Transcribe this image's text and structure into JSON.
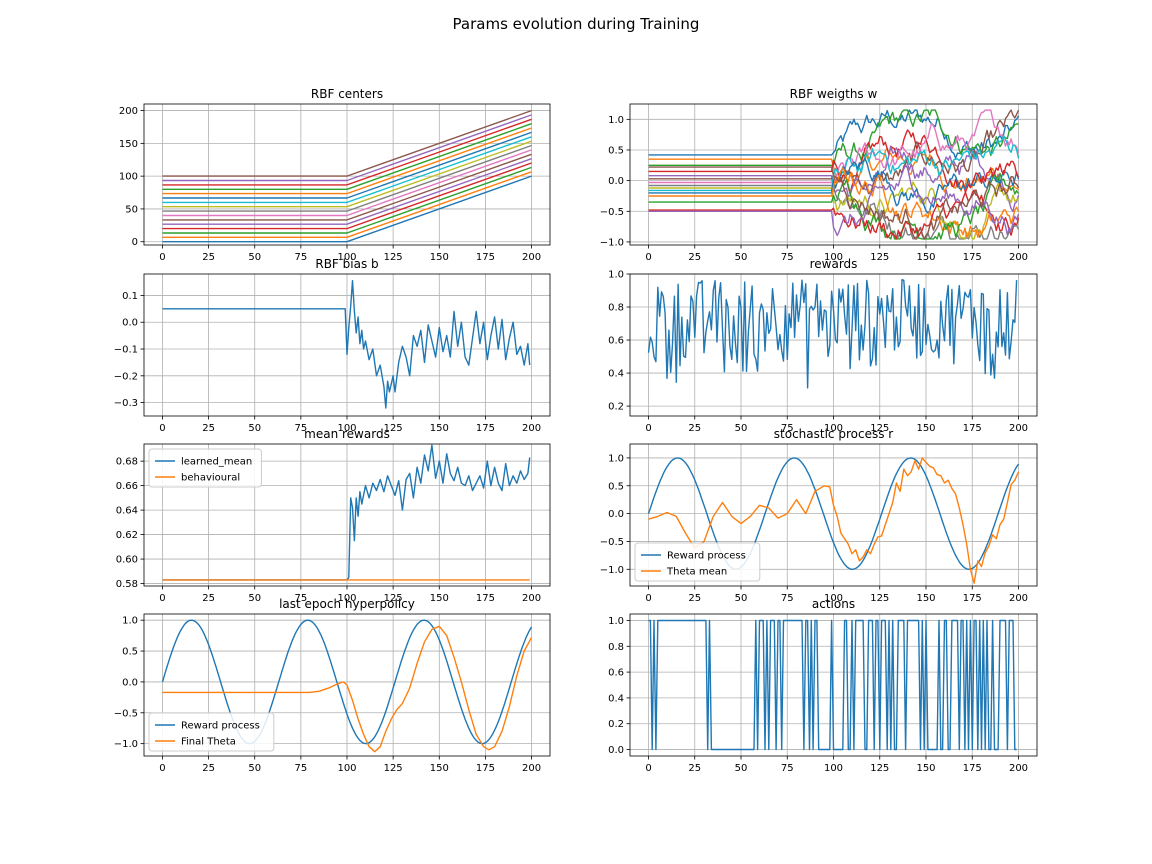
{
  "figure": {
    "suptitle": "Params evolution during Training"
  },
  "colors": {
    "tab_blue": "#1f77b4",
    "tab_orange": "#ff7f0e",
    "palette": [
      "#1f77b4",
      "#ff7f0e",
      "#2ca02c",
      "#d62728",
      "#9467bd",
      "#8c564b",
      "#e377c2",
      "#7f7f7f",
      "#bcbd22",
      "#17becf"
    ]
  },
  "chart_data": [
    {
      "id": "rbf_centers",
      "type": "line",
      "title": "RBF centers",
      "xlim": [
        -10,
        210
      ],
      "ylim": [
        -5,
        210
      ],
      "xticks": [
        0,
        25,
        50,
        75,
        100,
        125,
        150,
        175,
        200
      ],
      "yticks": [
        0,
        50,
        100,
        150,
        200
      ],
      "grid": true,
      "generator": {
        "kind": "piecewise_lines",
        "n_lines": 16,
        "x_break": 100,
        "x_end": 200,
        "start_range": [
          0,
          100
        ],
        "end_range": [
          100,
          200
        ]
      }
    },
    {
      "id": "rbf_weights",
      "type": "line",
      "title": "RBF weigths w",
      "xlim": [
        -10,
        210
      ],
      "ylim": [
        -1.05,
        1.25
      ],
      "xticks": [
        0,
        25,
        50,
        75,
        100,
        125,
        150,
        175,
        200
      ],
      "yticks": [
        -1.0,
        -0.5,
        0.0,
        0.5,
        1.0
      ],
      "grid": true,
      "generator": {
        "kind": "constant_then_noise",
        "x_break": 99,
        "initial_values": [
          0.42,
          0.35,
          0.25,
          0.15,
          0.08,
          0.03,
          -0.03,
          -0.08,
          -0.12,
          -0.16,
          -0.2,
          -0.25,
          -0.35,
          -0.48,
          -0.5,
          0.22
        ],
        "value_range": [
          -0.95,
          1.15
        ]
      }
    },
    {
      "id": "rbf_bias",
      "type": "line",
      "title": "RBF bias b",
      "xlim": [
        -10,
        210
      ],
      "ylim": [
        -0.35,
        0.18
      ],
      "xticks": [
        0,
        25,
        50,
        75,
        100,
        125,
        150,
        175,
        200
      ],
      "yticks": [
        -0.3,
        -0.2,
        -0.1,
        0.0,
        0.1
      ],
      "grid": true,
      "series": [
        {
          "x": [
            0,
            98,
            99,
            100,
            101,
            102,
            103,
            104,
            105,
            106,
            107,
            108,
            109,
            110,
            112,
            114,
            116,
            118,
            120,
            121,
            122,
            123,
            124,
            125,
            126,
            128,
            130,
            132,
            134,
            136,
            138,
            140,
            142,
            144,
            146,
            148,
            150,
            152,
            154,
            156,
            158,
            160,
            162,
            164,
            166,
            168,
            170,
            172,
            174,
            176,
            178,
            180,
            182,
            184,
            186,
            188,
            190,
            192,
            194,
            196,
            198,
            199
          ],
          "values": [
            0.05,
            0.05,
            0.05,
            -0.12,
            -0.02,
            0.06,
            0.155,
            0.04,
            -0.04,
            0.02,
            -0.08,
            -0.03,
            -0.1,
            -0.07,
            -0.14,
            -0.1,
            -0.2,
            -0.16,
            -0.24,
            -0.32,
            -0.22,
            -0.26,
            -0.23,
            -0.2,
            -0.26,
            -0.15,
            -0.09,
            -0.13,
            -0.2,
            -0.05,
            -0.09,
            -0.03,
            -0.15,
            -0.01,
            -0.07,
            -0.13,
            -0.02,
            -0.11,
            -0.05,
            -0.13,
            0.04,
            -0.09,
            0.0,
            -0.13,
            -0.16,
            -0.06,
            0.04,
            -0.08,
            0.0,
            -0.14,
            -0.05,
            0.02,
            -0.1,
            0.01,
            -0.14,
            -0.06,
            0.0,
            -0.12,
            -0.09,
            -0.16,
            -0.08,
            -0.16
          ]
        }
      ]
    },
    {
      "id": "rewards",
      "type": "line",
      "title": "rewards",
      "xlim": [
        -10,
        210
      ],
      "ylim": [
        0.14,
        1.0
      ],
      "xticks": [
        0,
        25,
        50,
        75,
        100,
        125,
        150,
        175,
        200
      ],
      "yticks": [
        0.2,
        0.4,
        0.6,
        0.8,
        1.0
      ],
      "grid": true,
      "generator": {
        "kind": "noise",
        "n": 200,
        "range": [
          0.17,
          0.97
        ]
      }
    },
    {
      "id": "mean_rewards",
      "type": "line",
      "title": "mean rewards",
      "xlim": [
        -10,
        210
      ],
      "ylim": [
        0.578,
        0.694
      ],
      "xticks": [
        0,
        25,
        50,
        75,
        100,
        125,
        150,
        175,
        200
      ],
      "yticks": [
        0.58,
        0.6,
        0.62,
        0.64,
        0.66,
        0.68
      ],
      "grid": true,
      "legend": "upper-left",
      "series": [
        {
          "name": "learned_mean",
          "x": [
            0,
            100,
            101,
            102,
            103,
            104,
            105,
            106,
            107,
            108,
            110,
            112,
            114,
            116,
            118,
            120,
            122,
            124,
            126,
            128,
            130,
            132,
            134,
            136,
            138,
            140,
            142,
            144,
            146,
            148,
            150,
            152,
            154,
            156,
            158,
            160,
            162,
            164,
            166,
            168,
            170,
            172,
            174,
            176,
            178,
            180,
            182,
            184,
            186,
            188,
            190,
            192,
            194,
            196,
            198,
            199
          ],
          "values": [
            0.583,
            0.583,
            0.585,
            0.65,
            0.642,
            0.615,
            0.65,
            0.635,
            0.655,
            0.645,
            0.66,
            0.65,
            0.662,
            0.656,
            0.665,
            0.655,
            0.668,
            0.66,
            0.652,
            0.664,
            0.64,
            0.665,
            0.67,
            0.65,
            0.675,
            0.662,
            0.685,
            0.672,
            0.693,
            0.666,
            0.68,
            0.662,
            0.686,
            0.67,
            0.664,
            0.675,
            0.662,
            0.66,
            0.668,
            0.656,
            0.662,
            0.668,
            0.658,
            0.68,
            0.66,
            0.675,
            0.662,
            0.656,
            0.678,
            0.66,
            0.668,
            0.662,
            0.672,
            0.665,
            0.67,
            0.683
          ]
        },
        {
          "name": "behavioural",
          "x": [
            0,
            199
          ],
          "values": [
            0.583,
            0.583
          ]
        }
      ]
    },
    {
      "id": "stochastic_process",
      "type": "line",
      "title": "stochastic process r",
      "xlim": [
        -10,
        210
      ],
      "ylim": [
        -1.3,
        1.25
      ],
      "xticks": [
        0,
        25,
        50,
        75,
        100,
        125,
        150,
        175,
        200
      ],
      "yticks": [
        -1.0,
        -0.5,
        0.0,
        0.5,
        1.0
      ],
      "grid": true,
      "legend": "lower-left",
      "series": [
        {
          "name": "Reward process",
          "generator": {
            "kind": "sine",
            "amplitude": 1.0,
            "period": 63
          }
        },
        {
          "name": "Theta mean",
          "x": [
            0,
            5,
            10,
            15,
            20,
            25,
            30,
            35,
            40,
            45,
            50,
            55,
            60,
            65,
            70,
            75,
            80,
            85,
            90,
            95,
            98,
            100,
            102,
            104,
            106,
            108,
            110,
            112,
            114,
            116,
            118,
            120,
            122,
            124,
            126,
            128,
            130,
            132,
            134,
            136,
            138,
            140,
            142,
            144,
            146,
            148,
            150,
            152,
            154,
            156,
            158,
            160,
            162,
            164,
            166,
            168,
            170,
            172,
            174,
            176,
            178,
            180,
            182,
            184,
            186,
            188,
            190,
            192,
            194,
            196,
            198,
            200
          ],
          "values": [
            -0.1,
            -0.05,
            0.02,
            -0.05,
            -0.35,
            -0.62,
            -0.5,
            -0.05,
            0.2,
            -0.05,
            -0.18,
            -0.05,
            0.15,
            0.1,
            -0.08,
            0.0,
            0.25,
            0.0,
            0.4,
            0.5,
            0.48,
            0.15,
            -0.05,
            -0.35,
            -0.45,
            -0.55,
            -0.72,
            -0.65,
            -0.85,
            -0.78,
            -0.65,
            -0.72,
            -0.55,
            -0.42,
            -0.4,
            -0.2,
            0.0,
            0.2,
            0.55,
            0.4,
            0.8,
            0.68,
            0.75,
            0.95,
            0.8,
            1.0,
            0.92,
            0.85,
            0.82,
            0.7,
            0.68,
            0.55,
            0.6,
            0.45,
            0.35,
            0.1,
            -0.2,
            -0.55,
            -1.0,
            -1.25,
            -0.85,
            -0.95,
            -0.7,
            -0.58,
            -0.38,
            -0.45,
            -0.2,
            -0.1,
            0.2,
            0.52,
            0.6,
            0.75
          ]
        }
      ]
    },
    {
      "id": "last_epoch_hyperpolicy",
      "type": "line",
      "title": "last epoch hyperpolicy",
      "xlim": [
        -10,
        210
      ],
      "ylim": [
        -1.2,
        1.1
      ],
      "xticks": [
        0,
        25,
        50,
        75,
        100,
        125,
        150,
        175,
        200
      ],
      "yticks": [
        -1.0,
        -0.5,
        0.0,
        0.5,
        1.0
      ],
      "grid": true,
      "legend": "lower-left",
      "series": [
        {
          "name": "Reward process",
          "generator": {
            "kind": "sine",
            "amplitude": 1.0,
            "period": 63
          }
        },
        {
          "name": "Final Theta",
          "x": [
            0,
            80,
            85,
            90,
            95,
            98,
            100,
            103,
            106,
            109,
            112,
            115,
            118,
            121,
            124,
            127,
            130,
            134,
            138,
            142,
            146,
            150,
            154,
            158,
            162,
            166,
            170,
            174,
            177,
            180,
            184,
            188,
            192,
            196,
            200
          ],
          "values": [
            -0.17,
            -0.17,
            -0.15,
            -0.1,
            -0.03,
            0.0,
            -0.05,
            -0.3,
            -0.6,
            -0.85,
            -1.05,
            -1.13,
            -1.05,
            -0.8,
            -0.6,
            -0.45,
            -0.35,
            -0.1,
            0.3,
            0.65,
            0.85,
            0.9,
            0.75,
            0.4,
            0.0,
            -0.45,
            -0.85,
            -1.05,
            -1.1,
            -1.05,
            -0.8,
            -0.4,
            0.1,
            0.5,
            0.72
          ]
        }
      ]
    },
    {
      "id": "actions",
      "type": "line",
      "title": "actions",
      "xlim": [
        -10,
        210
      ],
      "ylim": [
        -0.05,
        1.05
      ],
      "xticks": [
        0,
        25,
        50,
        75,
        100,
        125,
        150,
        175,
        200
      ],
      "yticks": [
        0.0,
        0.2,
        0.4,
        0.6,
        0.8,
        1.0
      ],
      "grid": true,
      "series": [
        {
          "intervals_high": [
            [
              0,
              1
            ],
            [
              3,
              3
            ],
            [
              5,
              31
            ],
            [
              33,
              33
            ],
            [
              58,
              58
            ],
            [
              60,
              62
            ],
            [
              64,
              64
            ],
            [
              66,
              68
            ],
            [
              70,
              71
            ],
            [
              73,
              83
            ],
            [
              85,
              86
            ],
            [
              88,
              88
            ],
            [
              90,
              91
            ],
            [
              99,
              99
            ],
            [
              106,
              107
            ],
            [
              110,
              110
            ],
            [
              112,
              116
            ],
            [
              119,
              121
            ],
            [
              123,
              124
            ],
            [
              126,
              128
            ],
            [
              130,
              130
            ],
            [
              132,
              132
            ],
            [
              135,
              138
            ],
            [
              140,
              146
            ],
            [
              148,
              148
            ],
            [
              150,
              150
            ],
            [
              157,
              157
            ],
            [
              160,
              161
            ],
            [
              164,
              167
            ],
            [
              169,
              170
            ],
            [
              172,
              172
            ],
            [
              174,
              174
            ],
            [
              176,
              177
            ],
            [
              179,
              179
            ],
            [
              181,
              181
            ],
            [
              183,
              183
            ],
            [
              186,
              186
            ],
            [
              190,
              193
            ],
            [
              195,
              197
            ]
          ],
          "x_end": 199
        }
      ]
    }
  ]
}
